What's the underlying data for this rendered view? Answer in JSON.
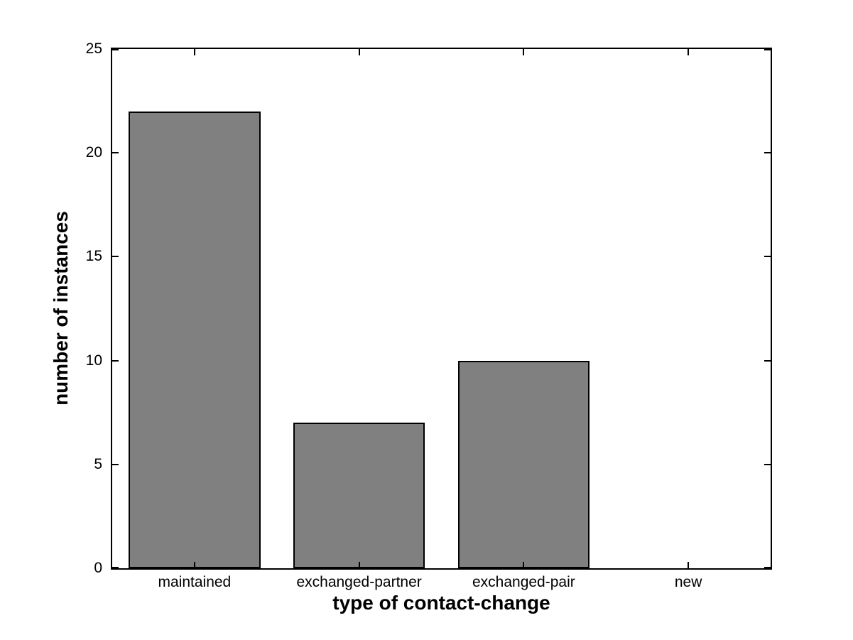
{
  "chart_data": {
    "type": "bar",
    "categories": [
      "maintained",
      "exchanged-partner",
      "exchanged-pair",
      "new"
    ],
    "values": [
      22,
      7,
      10,
      0
    ],
    "title": "",
    "xlabel": "type of contact-change",
    "ylabel": "number of instances",
    "ylim": [
      0,
      25
    ],
    "yticks": [
      0,
      5,
      10,
      15,
      20,
      25
    ],
    "bar_width_fraction": 0.8,
    "grid": false,
    "legend": null,
    "colors": {
      "bar_fill": "#808080",
      "bar_edge": "#000000",
      "axis": "#000000",
      "background": "#ffffff",
      "text": "#000000"
    }
  }
}
